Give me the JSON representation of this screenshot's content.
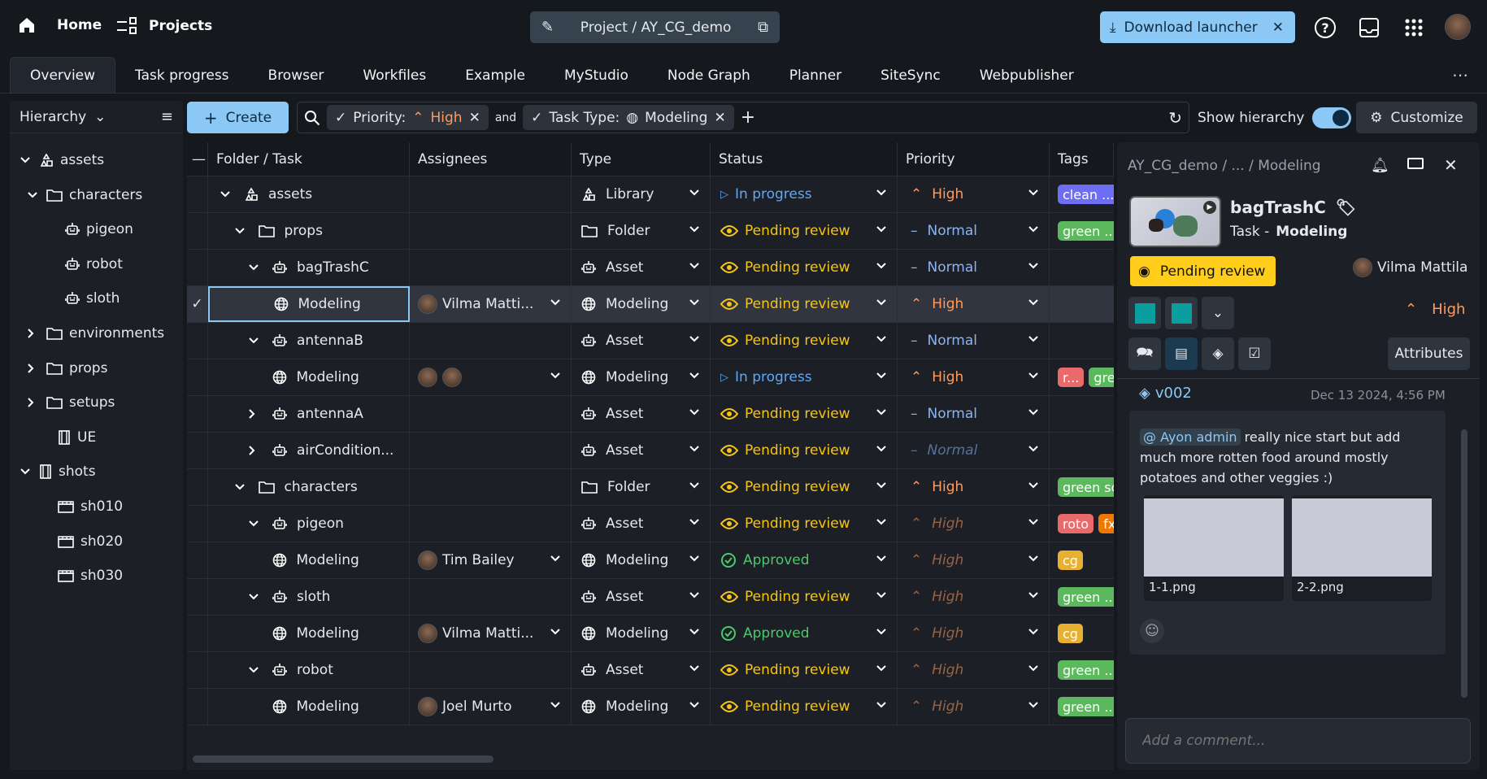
{
  "topbar": {
    "home": "Home",
    "projects": "Projects",
    "project_title": "Project / AY_CG_demo",
    "download": "Download launcher"
  },
  "tabs": [
    "Overview",
    "Task progress",
    "Browser",
    "Workfiles",
    "Example",
    "MyStudio",
    "Node Graph",
    "Planner",
    "SiteSync",
    "Webpublisher"
  ],
  "hierarchy": {
    "label": "Hierarchy",
    "items": [
      {
        "label": "assets",
        "level": 0,
        "chev": "down",
        "icon": "library"
      },
      {
        "label": "characters",
        "level": 1,
        "chev": "down",
        "icon": "folder"
      },
      {
        "label": "pigeon",
        "level": 2,
        "chev": "",
        "icon": "asset"
      },
      {
        "label": "robot",
        "level": 2,
        "chev": "",
        "icon": "asset"
      },
      {
        "label": "sloth",
        "level": 2,
        "chev": "",
        "icon": "asset"
      },
      {
        "label": "environments",
        "level": 1,
        "chev": "right",
        "icon": "folder"
      },
      {
        "label": "props",
        "level": 1,
        "chev": "right",
        "icon": "folder"
      },
      {
        "label": "setups",
        "level": 1,
        "chev": "right",
        "icon": "folder"
      },
      {
        "label": "UE",
        "level": 1,
        "chev": "",
        "icon": "film"
      },
      {
        "label": "shots",
        "level": 0,
        "chev": "down",
        "icon": "film"
      },
      {
        "label": "sh010",
        "level": 1,
        "chev": "",
        "icon": "clap"
      },
      {
        "label": "sh020",
        "level": 1,
        "chev": "",
        "icon": "clap"
      },
      {
        "label": "sh030",
        "level": 1,
        "chev": "",
        "icon": "clap"
      }
    ]
  },
  "toolbar": {
    "create": "Create",
    "filter1_key": "Priority:",
    "filter1_val": "High",
    "and": "and",
    "filter2_key": "Task Type:",
    "filter2_val": "Modeling",
    "show_hierarchy": "Show hierarchy",
    "show_hierarchy_on": true,
    "customize": "Customize"
  },
  "colors": {
    "pending": "#f5c518",
    "in_progress": "#5fa8f5",
    "approved": "#4cc96a",
    "high": "#ff9b5e",
    "normal": "#8cb4f0",
    "accent": "#8cc8f5"
  },
  "table": {
    "columns": [
      "Folder / Task",
      "Assignees",
      "Type",
      "Status",
      "Priority",
      "Tags"
    ],
    "rows": [
      {
        "name": "assets",
        "level": 0,
        "chev": "down",
        "icon": "library",
        "assignees": [],
        "type": "Library",
        "status": "In progress",
        "priority": "High",
        "inherited": false,
        "tags": [
          {
            "t": "clean ...",
            "c": "#6e6ef5"
          }
        ]
      },
      {
        "name": "props",
        "level": 1,
        "chev": "down",
        "icon": "folder",
        "assignees": [],
        "type": "Folder",
        "status": "Pending review",
        "priority": "Normal",
        "inherited": false,
        "tags": [
          {
            "t": "green ...",
            "c": "#5cb85c"
          }
        ]
      },
      {
        "name": "bagTrashC",
        "level": 2,
        "chev": "down",
        "icon": "asset",
        "assignees": [],
        "type": "Asset",
        "status": "Pending review",
        "priority": "Normal",
        "inherited": false,
        "tags": []
      },
      {
        "name": "Modeling",
        "level": 3,
        "chev": "",
        "icon": "task",
        "assignees": [
          "Vilma Matti..."
        ],
        "type": "Modeling",
        "status": "Pending review",
        "priority": "High",
        "inherited": false,
        "tags": [],
        "selected": true
      },
      {
        "name": "antennaB",
        "level": 2,
        "chev": "down",
        "icon": "asset",
        "assignees": [],
        "type": "Asset",
        "status": "Pending review",
        "priority": "Normal",
        "inherited": false,
        "tags": []
      },
      {
        "name": "Modeling",
        "level": 3,
        "chev": "",
        "icon": "task",
        "assignees": [
          "",
          ""
        ],
        "type": "Modeling",
        "status": "In progress",
        "priority": "High",
        "inherited": false,
        "tags": [
          {
            "t": "r...",
            "c": "#e86a6a"
          },
          {
            "t": "gre",
            "c": "#5cb85c"
          }
        ]
      },
      {
        "name": "antennaA",
        "level": 2,
        "chev": "right",
        "icon": "asset",
        "assignees": [],
        "type": "Asset",
        "status": "Pending review",
        "priority": "Normal",
        "inherited": false,
        "tags": []
      },
      {
        "name": "airCondition...",
        "level": 2,
        "chev": "right",
        "icon": "asset",
        "assignees": [],
        "type": "Asset",
        "status": "Pending review",
        "priority": "Normal",
        "inherited": true,
        "tags": []
      },
      {
        "name": "characters",
        "level": 1,
        "chev": "down",
        "icon": "folder",
        "assignees": [],
        "type": "Folder",
        "status": "Pending review",
        "priority": "High",
        "inherited": false,
        "tags": [
          {
            "t": "green sc",
            "c": "#5cb85c"
          }
        ]
      },
      {
        "name": "pigeon",
        "level": 2,
        "chev": "down",
        "icon": "asset",
        "assignees": [],
        "type": "Asset",
        "status": "Pending review",
        "priority": "High",
        "inherited": true,
        "tags": [
          {
            "t": "roto",
            "c": "#e86a6a"
          },
          {
            "t": "fx",
            "c": "#f07800"
          }
        ]
      },
      {
        "name": "Modeling",
        "level": 3,
        "chev": "",
        "icon": "task",
        "assignees": [
          "Tim Bailey"
        ],
        "type": "Modeling",
        "status": "Approved",
        "priority": "High",
        "inherited": true,
        "tags": [
          {
            "t": "cg",
            "c": "#e8b030"
          }
        ]
      },
      {
        "name": "sloth",
        "level": 2,
        "chev": "down",
        "icon": "asset",
        "assignees": [],
        "type": "Asset",
        "status": "Pending review",
        "priority": "High",
        "inherited": true,
        "tags": [
          {
            "t": "green ...",
            "c": "#5cb85c"
          }
        ]
      },
      {
        "name": "Modeling",
        "level": 3,
        "chev": "",
        "icon": "task",
        "assignees": [
          "Vilma Matti..."
        ],
        "type": "Modeling",
        "status": "Approved",
        "priority": "High",
        "inherited": true,
        "tags": [
          {
            "t": "cg",
            "c": "#e8b030"
          }
        ]
      },
      {
        "name": "robot",
        "level": 2,
        "chev": "down",
        "icon": "asset",
        "assignees": [],
        "type": "Asset",
        "status": "Pending review",
        "priority": "High",
        "inherited": true,
        "tags": [
          {
            "t": "green ...",
            "c": "#5cb85c"
          }
        ]
      },
      {
        "name": "Modeling",
        "level": 3,
        "chev": "",
        "icon": "task",
        "assignees": [
          "Joel Murto"
        ],
        "type": "Modeling",
        "status": "Pending review",
        "priority": "High",
        "inherited": true,
        "tags": [
          {
            "t": "green ...",
            "c": "#5cb85c"
          }
        ]
      }
    ]
  },
  "panel": {
    "breadcrumb": "AY_CG_demo /  ...  / Modeling",
    "title": "bagTrashC",
    "subtitle_prefix": "Task -",
    "subtitle": "Modeling",
    "status": "Pending review",
    "assignee": "Vilma Mattila",
    "priority": "High",
    "attributes": "Attributes",
    "version": "v002",
    "date": "Dec 13 2024, 4:56 PM",
    "mention": "Ayon admin",
    "comment": "really nice start but add much more rotten food around mostly potatoes and other veggies :)",
    "files": [
      "1-1.png",
      "2-2.png"
    ],
    "comment_placeholder": "Add a comment..."
  }
}
